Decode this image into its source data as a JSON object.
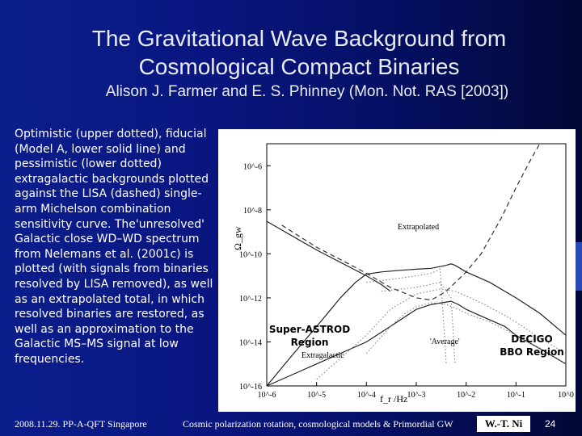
{
  "slide": {
    "title_line1": "The Gravitational Wave Background from",
    "title_line2": "Cosmological Compact Binaries",
    "authors": "Alison J. Farmer and E. S. Phinney (Mon. Not. RAS [2003])",
    "description": "Optimistic (upper dotted), fiducial (Model A, lower solid line) and pessimistic (lower dotted) extragalactic backgrounds plotted against the LISA (dashed) single-arm Michelson combination sensitivity curve. The'unresolved' Galactic close WD–WD spectrum from Nelemans et al. (2001c) is plotted (with signals from binaries resolved by LISA removed), as well as an extrapolated total, in which resolved binaries are restored, as well as an approximation to the Galactic MS–MS signal at low frequencies.",
    "footer_left": "2008.11.29. PP-A-QFT Singapore",
    "footer_mid": "Cosmic polarization rotation, cosmological models & Primordial GW",
    "footer_author": "W.-T. Ni",
    "page_number": "24"
  },
  "chart_data": {
    "type": "line",
    "log_x": true,
    "log_y": true,
    "xlabel": "f_r /Hz",
    "ylabel": "Ω_gw",
    "xlim": [
      1e-06,
      1
    ],
    "ylim": [
      1e-16,
      1e-05
    ],
    "x_tick_labels": [
      "10^-6",
      "10^-5",
      "10^-4",
      "10^-3",
      "10^-2",
      "10^-1",
      "10^0"
    ],
    "y_tick_labels": [
      "10^-6",
      "10^-8",
      "10^-10",
      "10^-12",
      "10^-14",
      "10^-16"
    ],
    "annotations": {
      "extrapolated": "Extrapolated",
      "average": "'Average'",
      "extragalactic": "Extragalactic",
      "super_astrod": "Super-ASTROD",
      "super_astrod_2": "Region",
      "decigo": "DECIGO",
      "decigo_2": "BBO Region"
    },
    "series": [
      {
        "style": "dashed",
        "points": [
          [
            2e-06,
            2e-09
          ],
          [
            1e-05,
            2e-10
          ],
          [
            5e-05,
            3e-11
          ],
          [
            0.0001,
            1.3e-11
          ],
          [
            0.0003,
            3e-12
          ],
          [
            0.001,
            1e-12
          ],
          [
            0.002,
            8e-13
          ],
          [
            0.004,
            2e-12
          ],
          [
            0.01,
            1.5e-11
          ],
          [
            0.02,
            1e-10
          ],
          [
            0.05,
            4e-09
          ],
          [
            0.1,
            1e-07
          ],
          [
            0.2,
            2e-06
          ],
          [
            0.3,
            1e-05
          ]
        ]
      },
      {
        "style": "solid",
        "points": [
          [
            1e-06,
            1e-16
          ],
          [
            3e-06,
            2e-15
          ],
          [
            1e-05,
            5e-14
          ],
          [
            3e-05,
            1e-12
          ],
          [
            6e-05,
            5e-12
          ],
          [
            0.0001,
            1.2e-11
          ],
          [
            0.0002,
            1.5e-11
          ],
          [
            0.0005,
            1.8e-11
          ],
          [
            0.001,
            2e-11
          ],
          [
            0.002,
            2.2e-11
          ],
          [
            0.004,
            3e-11
          ],
          [
            0.005,
            3.5e-11
          ],
          [
            0.006,
            3e-11
          ],
          [
            0.01,
            1.5e-11
          ],
          [
            0.03,
            5e-12
          ],
          [
            0.1,
            1e-12
          ],
          [
            0.3,
            2e-13
          ],
          [
            1,
            2e-14
          ]
        ]
      },
      {
        "style": "solid",
        "points": [
          [
            1e-06,
            1e-16
          ],
          [
            1e-05,
            1e-15
          ],
          [
            0.0001,
            1e-14
          ],
          [
            0.0003,
            5e-14
          ],
          [
            0.001,
            3e-13
          ],
          [
            0.002,
            5e-13
          ],
          [
            0.005,
            7e-13
          ],
          [
            0.007,
            5e-13
          ],
          [
            0.01,
            3e-13
          ],
          [
            0.02,
            1.5e-13
          ],
          [
            0.06,
            5e-14
          ],
          [
            0.1,
            2e-14
          ],
          [
            0.3,
            5e-15
          ],
          [
            1,
            1e-15
          ]
        ]
      },
      {
        "style": "solid",
        "points": [
          [
            1e-06,
            3e-09
          ],
          [
            1e-05,
            1.5e-10
          ],
          [
            0.0001,
            1e-11
          ],
          [
            0.0002,
            4e-12
          ],
          [
            0.0003,
            2e-12
          ]
        ]
      },
      {
        "style": "dotted",
        "points": [
          [
            1e-05,
            2e-16
          ],
          [
            5e-05,
            5e-15
          ],
          [
            0.0001,
            2e-14
          ],
          [
            0.0003,
            3e-13
          ],
          [
            0.001,
            1.5e-12
          ],
          [
            0.003,
            2.5e-12
          ],
          [
            0.006,
            2e-12
          ],
          [
            0.01,
            1.2e-12
          ],
          [
            0.02,
            6e-13
          ],
          [
            0.05,
            2e-13
          ],
          [
            0.1,
            8e-14
          ],
          [
            0.3,
            1.5e-14
          ],
          [
            1,
            3e-15
          ]
        ]
      },
      {
        "style": "dotted",
        "points": [
          [
            0.0001,
            3e-15
          ],
          [
            0.0003,
            5e-14
          ],
          [
            0.0006,
            2e-13
          ],
          [
            0.001,
            4e-13
          ],
          [
            0.002,
            6e-13
          ],
          [
            0.004,
            5e-13
          ],
          [
            0.007,
            3e-13
          ],
          [
            0.01,
            2e-13
          ],
          [
            0.03,
            8e-14
          ],
          [
            0.1,
            2e-14
          ],
          [
            0.3,
            5e-15
          ],
          [
            1,
            1e-15
          ]
        ]
      },
      {
        "style": "dotted",
        "points": [
          [
            0.0001,
            5e-12
          ],
          [
            0.0005,
            8e-12
          ],
          [
            0.001,
            1e-11
          ],
          [
            0.002,
            1.3e-11
          ],
          [
            0.003,
            2e-11
          ],
          [
            0.0035,
            1e-13
          ],
          [
            0.004,
            1e-15
          ]
        ]
      },
      {
        "style": "dotted",
        "points": [
          [
            0.0002,
            2e-12
          ],
          [
            0.001,
            3e-12
          ],
          [
            0.003,
            5e-12
          ],
          [
            0.005,
            1e-12
          ],
          [
            0.006,
            1e-15
          ]
        ]
      }
    ]
  }
}
